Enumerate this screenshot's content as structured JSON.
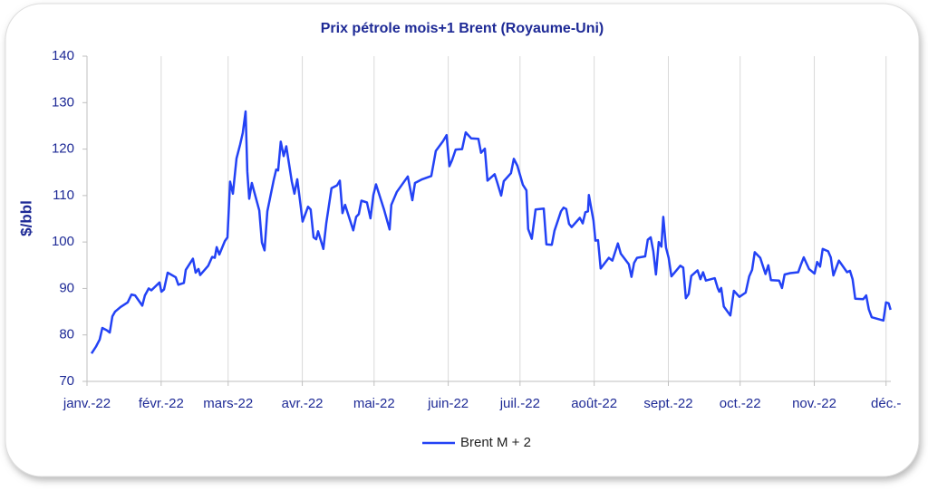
{
  "chart_data": {
    "type": "line",
    "title": "Prix pétrole mois+1 Brent (Royaume-Uni)",
    "y_label": "$/bbl",
    "x": [
      1.9,
      3.8,
      5.3,
      6.4,
      8.3,
      9.5,
      10.6,
      11.7,
      14.0,
      17.0,
      18.6,
      20.1,
      23.1,
      24.2,
      25.8,
      26.9,
      30.3,
      31.1,
      32.2,
      33.7,
      37.1,
      38.2,
      40.5,
      41.3,
      44.3,
      45.4,
      46.6,
      47.3,
      50.7,
      52.3,
      53.4,
      54.2,
      55.3,
      57.6,
      58.7,
      59.8,
      61.0,
      62.5,
      64.0,
      65.1,
      66.3,
      67.0,
      67.8,
      68.9,
      72.0,
      73.1,
      74.2,
      75.4,
      78.0,
      79.1,
      79.9,
      81.0,
      82.2,
      83.3,
      85.6,
      86.7,
      87.9,
      89.0,
      90.1,
      92.4,
      93.5,
      94.7,
      95.8,
      96.6,
      98.8,
      100.0,
      102.2,
      104.5,
      105.7,
      106.8,
      107.9,
      111.3,
      112.5,
      113.6,
      114.7,
      117.0,
      118.5,
      119.7,
      120.8,
      124.2,
      126.5,
      127.2,
      129.5,
      134.1,
      136.0,
      137.1,
      140.1,
      143.9,
      145.8,
      148.8,
      150.3,
      151.5,
      152.6,
      154.1,
      156.8,
      158.3,
      160.6,
      163.6,
      164.7,
      166.3,
      167.4,
      170.4,
      171.5,
      173.1,
      174.2,
      177.2,
      178.4,
      179.9,
      182.2,
      183.7,
      184.4,
      185.9,
      187.5,
      190.9,
      192.0,
      194.3,
      195.4,
      198.1,
      199.2,
      200.3,
      201.5,
      202.6,
      206.0,
      207.2,
      208.3,
      209.4,
      209.8,
      210.6,
      211.7,
      212.5,
      213.6,
      214.7,
      218.1,
      219.6,
      221.9,
      223.1,
      226.5,
      227.6,
      228.7,
      229.9,
      233.3,
      234.4,
      235.6,
      236.7,
      237.8,
      239.0,
      240.1,
      240.9,
      242.0,
      243.1,
      244.3,
      248.0,
      249.2,
      250.3,
      251.5,
      252.6,
      255.2,
      256.4,
      257.5,
      258.7,
      262.4,
      263.6,
      264.3,
      265.1,
      266.2,
      268.9,
      270.4,
      272.7,
      275.3,
      276.8,
      278.0,
      279.1,
      281.4,
      283.6,
      284.8,
      285.9,
      289.3,
      290.5,
      291.6,
      293.9,
      297.3,
      298.4,
      299.6,
      301.8,
      304.1,
      305.2,
      306.4,
      307.5,
      309.8,
      310.9,
      312.0,
      314.3,
      316.6,
      317.7,
      318.9,
      320.0,
      321.1,
      324.5,
      325.7,
      326.8,
      328.0,
      332.9,
      334.0,
      335.1,
      335.9
    ],
    "series": [
      {
        "name": "Brent M + 2",
        "color": "#2342f5",
        "values": [
          76,
          77.5,
          79,
          81.5,
          81,
          80.5,
          84,
          85,
          86,
          87,
          88.7,
          88.5,
          86.3,
          88.5,
          90,
          89.6,
          91.3,
          89.3,
          89.8,
          93.4,
          92.4,
          90.8,
          91.2,
          94,
          96.4,
          93.4,
          94.2,
          92.9,
          94.9,
          96.8,
          96.6,
          98.9,
          97.3,
          100.2,
          101,
          113,
          110.4,
          118,
          121,
          123.5,
          128.1,
          115.2,
          109.3,
          112.7,
          106.8,
          99.9,
          98.2,
          106.6,
          113.2,
          115.6,
          115.4,
          121.6,
          118.5,
          120.6,
          113,
          110.4,
          113.5,
          109.1,
          104.4,
          107.6,
          107,
          101,
          100.6,
          102.3,
          98.5,
          104,
          111.6,
          112.2,
          113.2,
          106.2,
          108,
          102.5,
          105.4,
          106,
          108.9,
          108.5,
          105.1,
          110.1,
          112.4,
          106.9,
          102.7,
          108,
          110.8,
          114.1,
          109,
          112.7,
          113.5,
          114.2,
          119.6,
          121.7,
          123,
          116.3,
          117.6,
          119.9,
          120,
          123.6,
          122.3,
          122.2,
          119.2,
          120.1,
          113.2,
          114.6,
          112.8,
          110,
          113.1,
          114.8,
          117.9,
          116.4,
          112.3,
          111.1,
          102.8,
          100.7,
          107,
          107.2,
          99.5,
          99.4,
          102.4,
          106.6,
          107.4,
          107.1,
          103.9,
          103.2,
          105.2,
          104,
          106.4,
          106.6,
          110.1,
          107.7,
          104.6,
          100.3,
          100.4,
          94.3,
          96.6,
          96,
          99.7,
          97.5,
          95.2,
          92.5,
          95.5,
          96.6,
          96.9,
          100.5,
          101,
          98,
          93,
          100,
          99,
          105.4,
          98.8,
          96.6,
          92.6,
          94.9,
          94.5,
          87.9,
          88.8,
          92.7,
          93.9,
          92,
          93.5,
          91.7,
          92.2,
          90.1,
          89.3,
          90.1,
          86.1,
          84.2,
          89.5,
          88.2,
          89.1,
          92.6,
          94,
          97.8,
          96.6,
          93.1,
          95,
          91.8,
          91.7,
          90.1,
          93,
          93.3,
          93.5,
          95.1,
          96.7,
          94.2,
          93.2,
          95.7,
          94.7,
          98.5,
          98,
          96.7,
          92.8,
          96,
          94.3,
          93.5,
          93.8,
          92,
          87.8,
          87.7,
          88.5,
          85.5,
          83.8,
          83.1,
          87,
          86.8,
          85.4
        ]
      }
    ],
    "xlim": [
      0,
      336
    ],
    "ylim": [
      70,
      140
    ],
    "xticks": [
      {
        "value": 0,
        "label": "janv.-22"
      },
      {
        "value": 31,
        "label": "févr.-22"
      },
      {
        "value": 59,
        "label": "mars-22"
      },
      {
        "value": 90,
        "label": "avr.-22"
      },
      {
        "value": 120,
        "label": "mai-22"
      },
      {
        "value": 151,
        "label": "juin-22"
      },
      {
        "value": 181,
        "label": "juil.-22"
      },
      {
        "value": 212,
        "label": "août-22"
      },
      {
        "value": 243,
        "label": "sept.-22"
      },
      {
        "value": 273,
        "label": "oct.-22"
      },
      {
        "value": 304,
        "label": "nov.-22"
      },
      {
        "value": 334,
        "label": "déc.-"
      }
    ],
    "yticks": [
      70,
      80,
      90,
      100,
      110,
      120,
      130,
      140
    ],
    "grid": "x",
    "legend": "bottom"
  }
}
